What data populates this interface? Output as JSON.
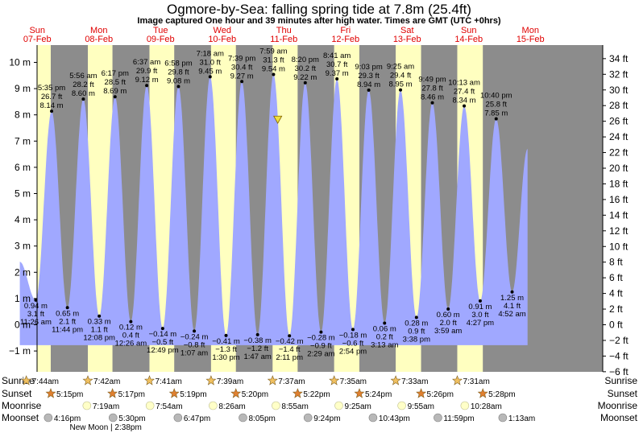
{
  "title": "Ogmore-by-Sea: falling  spring tide at 7.8m (25.4ft)",
  "subtitle": "Image captured One hour and 39 minutes after high water. Times are GMT (UTC +0hrs)",
  "days": [
    {
      "name": "Sun",
      "date": "07-Feb"
    },
    {
      "name": "Mon",
      "date": "08-Feb"
    },
    {
      "name": "Tue",
      "date": "09-Feb"
    },
    {
      "name": "Wed",
      "date": "10-Feb"
    },
    {
      "name": "Thu",
      "date": "11-Feb"
    },
    {
      "name": "Fri",
      "date": "12-Feb"
    },
    {
      "name": "Sat",
      "date": "13-Feb"
    },
    {
      "name": "Sun",
      "date": "14-Feb"
    },
    {
      "name": "Mon",
      "date": "15-Feb"
    }
  ],
  "chart_data": {
    "type": "area",
    "x_unit": "hours from 00:00 Sun 07-Feb (GMT)",
    "ylim_m": [
      -1.5,
      11
    ],
    "ylim_ft": [
      -6,
      36
    ],
    "left_ticks": [
      "10 m",
      "9 m",
      "8 m",
      "7 m",
      "6 m",
      "5 m",
      "4 m",
      "3 m",
      "2 m",
      "1 m",
      "0 m",
      "−1 m"
    ],
    "left_tick_values": [
      10,
      9,
      8,
      7,
      6,
      5,
      4,
      3,
      2,
      1,
      0,
      -1
    ],
    "right_ticks": [
      "34 ft",
      "32 ft",
      "30 ft",
      "28 ft",
      "26 ft",
      "24 ft",
      "22 ft",
      "20 ft",
      "18 ft",
      "16 ft",
      "14 ft",
      "12 ft",
      "10 ft",
      "8 ft",
      "6 ft",
      "4 ft",
      "2 ft",
      "0 ft",
      "−2 ft",
      "−4 ft",
      "−6 ft"
    ],
    "right_tick_values": [
      34,
      32,
      30,
      28,
      26,
      24,
      22,
      20,
      18,
      16,
      14,
      12,
      10,
      8,
      6,
      4,
      2,
      0,
      -2,
      -4,
      -6
    ],
    "tides": [
      {
        "t": 11.43,
        "m": 0.94,
        "lines": [
          "0.94 m",
          "3.1 ft",
          "11:26 am"
        ],
        "pos": "below"
      },
      {
        "t": 17.58,
        "m": 8.14,
        "lines": [
          "5:35 pm",
          "26.7 ft",
          "8.14 m"
        ],
        "pos": "above"
      },
      {
        "t": 23.73,
        "m": 0.65,
        "lines": [
          "0.65 m",
          "2.1 ft",
          "11:44 pm"
        ],
        "pos": "below"
      },
      {
        "t": 29.93,
        "m": 8.6,
        "lines": [
          "5:56 am",
          "28.2 ft",
          "8.60 m"
        ],
        "pos": "above"
      },
      {
        "t": 36.13,
        "m": 0.33,
        "lines": [
          "0.33 m",
          "1.1 ft",
          "12:08 pm"
        ],
        "pos": "below"
      },
      {
        "t": 42.28,
        "m": 8.69,
        "lines": [
          "6:17 pm",
          "28.5 ft",
          "8.69 m"
        ],
        "pos": "above"
      },
      {
        "t": 48.43,
        "m": 0.12,
        "lines": [
          "0.12 m",
          "0.4 ft",
          "12:26 am"
        ],
        "pos": "below"
      },
      {
        "t": 54.62,
        "m": 9.12,
        "lines": [
          "6:37 am",
          "29.9 ft",
          "9.12 m"
        ],
        "pos": "above"
      },
      {
        "t": 60.82,
        "m": -0.14,
        "lines": [
          "−0.14 m",
          "−0.5 ft",
          "12:49 pm"
        ],
        "pos": "below"
      },
      {
        "t": 66.97,
        "m": 9.08,
        "lines": [
          "6:58 pm",
          "29.8 ft",
          "9.08 m"
        ],
        "pos": "above"
      },
      {
        "t": 73.12,
        "m": -0.24,
        "lines": [
          "−0.24 m",
          "−0.8 ft",
          "1:07 am"
        ],
        "pos": "below"
      },
      {
        "t": 79.3,
        "m": 9.45,
        "lines": [
          "7:18 am",
          "31.0 ft",
          "9.45 m"
        ],
        "pos": "above"
      },
      {
        "t": 85.5,
        "m": -0.41,
        "lines": [
          "−0.41 m",
          "−1.3 ft",
          "1:30 pm"
        ],
        "pos": "below"
      },
      {
        "t": 91.65,
        "m": 9.27,
        "lines": [
          "7:39 pm",
          "30.4 ft",
          "9.27 m"
        ],
        "pos": "above"
      },
      {
        "t": 97.78,
        "m": -0.38,
        "lines": [
          "−0.38 m",
          "−1.2 ft",
          "1:47 am"
        ],
        "pos": "below"
      },
      {
        "t": 103.98,
        "m": 9.54,
        "lines": [
          "7:59 am",
          "31.3 ft",
          "9.54 m"
        ],
        "pos": "above"
      },
      {
        "t": 110.18,
        "m": -0.42,
        "lines": [
          "−0.42 m",
          "−1.4 ft",
          "2:11 pm"
        ],
        "pos": "below"
      },
      {
        "t": 116.33,
        "m": 9.22,
        "lines": [
          "8:20 pm",
          "30.2 ft",
          "9.22 m"
        ],
        "pos": "above"
      },
      {
        "t": 122.48,
        "m": -0.28,
        "lines": [
          "−0.28 m",
          "−0.9 ft",
          "2:29 am"
        ],
        "pos": "below"
      },
      {
        "t": 128.68,
        "m": 9.37,
        "lines": [
          "8:41 am",
          "30.7 ft",
          "9.37 m"
        ],
        "pos": "above"
      },
      {
        "t": 134.9,
        "m": -0.18,
        "lines": [
          "−0.18 m",
          "−0.6 ft",
          "2:54 pm"
        ],
        "pos": "below"
      },
      {
        "t": 141.05,
        "m": 8.94,
        "lines": [
          "9:03 pm",
          "29.3 ft",
          "8.94 m"
        ],
        "pos": "above"
      },
      {
        "t": 147.22,
        "m": 0.06,
        "lines": [
          "0.06 m",
          "0.2 ft",
          "3:13 am"
        ],
        "pos": "below"
      },
      {
        "t": 153.42,
        "m": 8.95,
        "lines": [
          "9:25 am",
          "29.4 ft",
          "8.95 m"
        ],
        "pos": "above"
      },
      {
        "t": 159.63,
        "m": 0.28,
        "lines": [
          "0.28 m",
          "0.9 ft",
          "3:38 pm"
        ],
        "pos": "below"
      },
      {
        "t": 165.82,
        "m": 8.46,
        "lines": [
          "9:49 pm",
          "27.8 ft",
          "8.46 m"
        ],
        "pos": "above"
      },
      {
        "t": 171.98,
        "m": 0.6,
        "lines": [
          "0.60 m",
          "2.0 ft",
          "3:59 am"
        ],
        "pos": "below"
      },
      {
        "t": 178.22,
        "m": 8.34,
        "lines": [
          "10:13 am",
          "27.4 ft",
          "8.34 m"
        ],
        "pos": "above"
      },
      {
        "t": 184.45,
        "m": 0.91,
        "lines": [
          "0.91 m",
          "3.0 ft",
          "4:27 pm"
        ],
        "pos": "below"
      },
      {
        "t": 190.67,
        "m": 7.85,
        "lines": [
          "10:40 pm",
          "25.8 ft",
          "7.85 m"
        ],
        "pos": "above"
      },
      {
        "t": 196.87,
        "m": 1.25,
        "lines": [
          "1.25 m",
          "4.1 ft",
          "4:52 am"
        ],
        "pos": "below"
      }
    ],
    "current": {
      "t": 105.63,
      "m": 7.8
    },
    "curve_start": {
      "t": 5.2,
      "m": 2.4
    },
    "curve_end": {
      "t": 202.9,
      "m": 6.7
    },
    "daylight": [
      {
        "rise": 7.73,
        "set": 17.25
      },
      {
        "rise": 31.7,
        "set": 41.28
      },
      {
        "rise": 55.68,
        "set": 65.32
      },
      {
        "rise": 79.65,
        "set": 89.33
      },
      {
        "rise": 103.62,
        "set": 113.37
      },
      {
        "rise": 127.58,
        "set": 137.4
      },
      {
        "rise": 151.55,
        "set": 161.43
      },
      {
        "rise": 175.52,
        "set": 185.47
      }
    ]
  },
  "rows": {
    "labels": [
      "Sunrise",
      "Sunset",
      "Moonrise",
      "Moonset"
    ],
    "sunrise": [
      {
        "t": 7.73,
        "label": "7:44am"
      },
      {
        "t": 31.7,
        "label": "7:42am"
      },
      {
        "t": 55.68,
        "label": "7:41am"
      },
      {
        "t": 79.65,
        "label": "7:39am"
      },
      {
        "t": 103.62,
        "label": "7:37am"
      },
      {
        "t": 127.58,
        "label": "7:35am"
      },
      {
        "t": 151.55,
        "label": "7:33am"
      },
      {
        "t": 175.52,
        "label": "7:31am"
      }
    ],
    "sunset": [
      {
        "t": 17.25,
        "label": "5:15pm"
      },
      {
        "t": 41.28,
        "label": "5:17pm"
      },
      {
        "t": 65.32,
        "label": "5:19pm"
      },
      {
        "t": 89.33,
        "label": "5:20pm"
      },
      {
        "t": 113.37,
        "label": "5:22pm"
      },
      {
        "t": 137.4,
        "label": "5:24pm"
      },
      {
        "t": 161.43,
        "label": "5:26pm"
      },
      {
        "t": 185.47,
        "label": "5:28pm"
      }
    ],
    "moonrise": [
      {
        "t": 31.32,
        "label": "7:19am"
      },
      {
        "t": 55.9,
        "label": "7:54am"
      },
      {
        "t": 80.43,
        "label": "8:26am"
      },
      {
        "t": 104.92,
        "label": "8:55am"
      },
      {
        "t": 129.42,
        "label": "9:25am"
      },
      {
        "t": 153.92,
        "label": "9:55am"
      },
      {
        "t": 178.47,
        "label": "10:28am"
      }
    ],
    "moonset": [
      {
        "t": 16.27,
        "label": "4:16pm"
      },
      {
        "t": 41.5,
        "label": "5:30pm"
      },
      {
        "t": 66.78,
        "label": "6:47pm"
      },
      {
        "t": 92.08,
        "label": "8:05pm"
      },
      {
        "t": 117.4,
        "label": "9:24pm"
      },
      {
        "t": 142.72,
        "label": "10:43pm"
      },
      {
        "t": 167.98,
        "label": "11:59pm"
      },
      {
        "t": 193.22,
        "label": "1:13am"
      }
    ],
    "new_moon": {
      "t": 38.63,
      "label": "New Moon | 2:38pm"
    }
  },
  "colors": {
    "night": "#8c8c8c",
    "day": "#ffffc0",
    "water": "#a0a8ff",
    "day_label": "#e00000",
    "sun": "#f0c060",
    "sunset_star": "#e08030",
    "moonrise": "#ffffc8",
    "moonset": "#b8b8b8"
  }
}
